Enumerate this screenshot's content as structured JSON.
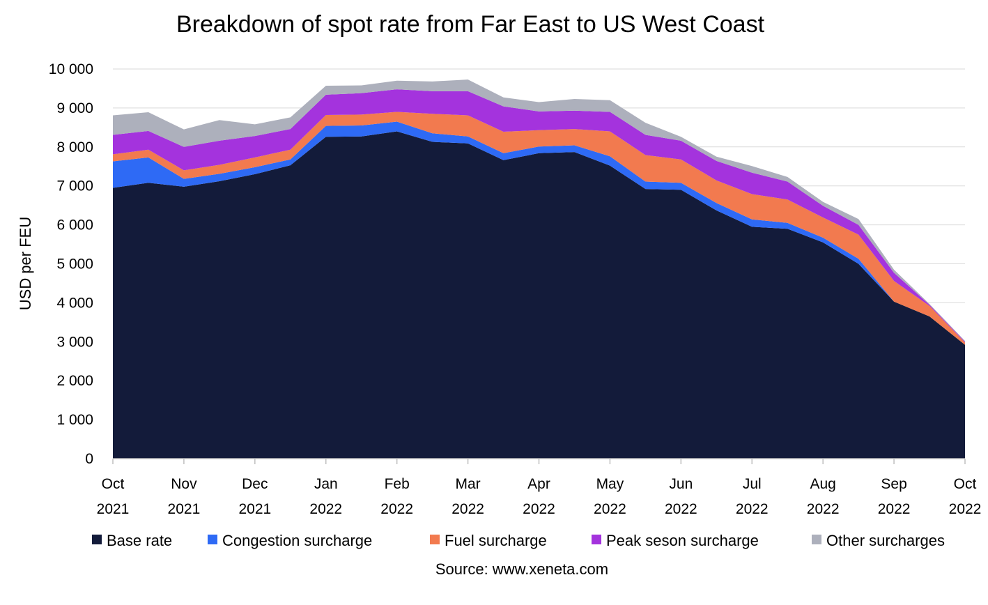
{
  "chart_data": {
    "type": "area",
    "stacked": true,
    "title": "Breakdown of spot rate from Far East to US West Coast",
    "ylabel": "USD per FEU",
    "xlabel": "",
    "ylim": [
      0,
      10000
    ],
    "yticks": [
      0,
      1000,
      2000,
      3000,
      4000,
      5000,
      6000,
      7000,
      8000,
      9000,
      10000
    ],
    "ytick_labels": [
      "0",
      "1 000",
      "2 000",
      "3 000",
      "4 000",
      "5 000",
      "6 000",
      "7 000",
      "8 000",
      "9 000",
      "10 000"
    ],
    "grid": true,
    "legend_position": "bottom",
    "source": "Source: www.xeneta.com",
    "month_labels": [
      {
        "month": "Oct",
        "year": "2021",
        "index": 0
      },
      {
        "month": "Nov",
        "year": "2021",
        "index": 2
      },
      {
        "month": "Dec",
        "year": "2021",
        "index": 4
      },
      {
        "month": "Jan",
        "year": "2022",
        "index": 6
      },
      {
        "month": "Feb",
        "year": "2022",
        "index": 8
      },
      {
        "month": "Mar",
        "year": "2022",
        "index": 10
      },
      {
        "month": "Apr",
        "year": "2022",
        "index": 12
      },
      {
        "month": "May",
        "year": "2022",
        "index": 14
      },
      {
        "month": "Jun",
        "year": "2022",
        "index": 16
      },
      {
        "month": "Jul",
        "year": "2022",
        "index": 18
      },
      {
        "month": "Aug",
        "year": "2022",
        "index": 20
      },
      {
        "month": "Sep",
        "year": "2022",
        "index": 22
      },
      {
        "month": "Oct",
        "year": "2022",
        "index": 24
      }
    ],
    "x_point_count": 25,
    "series": [
      {
        "name": "Base rate",
        "color": "#131b3a",
        "values": [
          6950,
          7080,
          6980,
          7120,
          7300,
          7530,
          8260,
          8270,
          8400,
          8130,
          8090,
          7660,
          7840,
          7870,
          7520,
          6920,
          6900,
          6370,
          5950,
          5900,
          5550,
          5000,
          4030,
          3650,
          2920
        ]
      },
      {
        "name": "Congestion surcharge",
        "color": "#2e6af5",
        "values": [
          680,
          650,
          200,
          190,
          180,
          150,
          280,
          280,
          250,
          220,
          180,
          180,
          170,
          170,
          240,
          190,
          180,
          190,
          190,
          150,
          120,
          130,
          0,
          0,
          0
        ]
      },
      {
        "name": "Fuel surcharge",
        "color": "#f27a4f",
        "values": [
          180,
          200,
          220,
          230,
          250,
          250,
          280,
          280,
          250,
          500,
          540,
          550,
          420,
          420,
          640,
          680,
          600,
          580,
          650,
          600,
          520,
          620,
          530,
          270,
          60
        ]
      },
      {
        "name": "Peak seson surcharge",
        "color": "#a433dd",
        "values": [
          500,
          480,
          600,
          620,
          550,
          530,
          520,
          550,
          580,
          580,
          620,
          650,
          480,
          470,
          500,
          520,
          480,
          500,
          550,
          460,
          300,
          250,
          210,
          30,
          20
        ]
      },
      {
        "name": "Other surcharges",
        "color": "#adb0bc",
        "values": [
          500,
          480,
          450,
          530,
          300,
          300,
          230,
          200,
          220,
          250,
          300,
          230,
          240,
          300,
          300,
          310,
          100,
          110,
          170,
          120,
          100,
          150,
          80,
          20,
          20
        ]
      }
    ]
  }
}
